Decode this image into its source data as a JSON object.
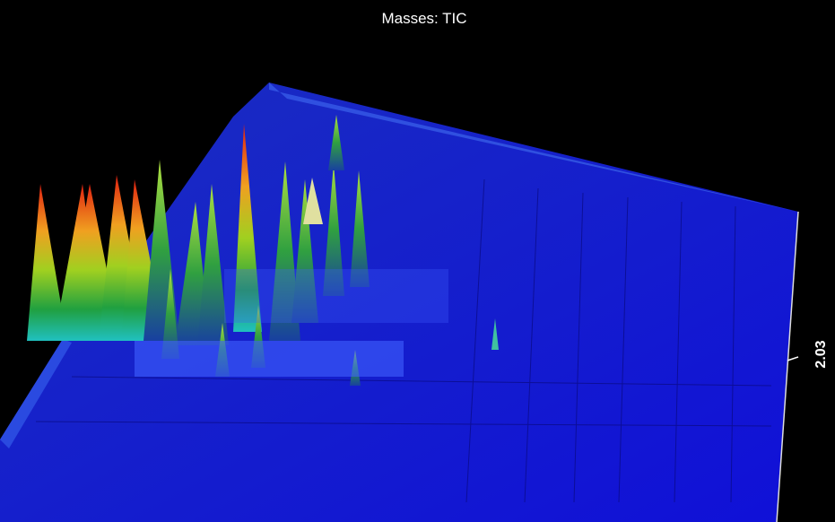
{
  "title": "Masses: TIC",
  "axis_label": "2.03"
}
